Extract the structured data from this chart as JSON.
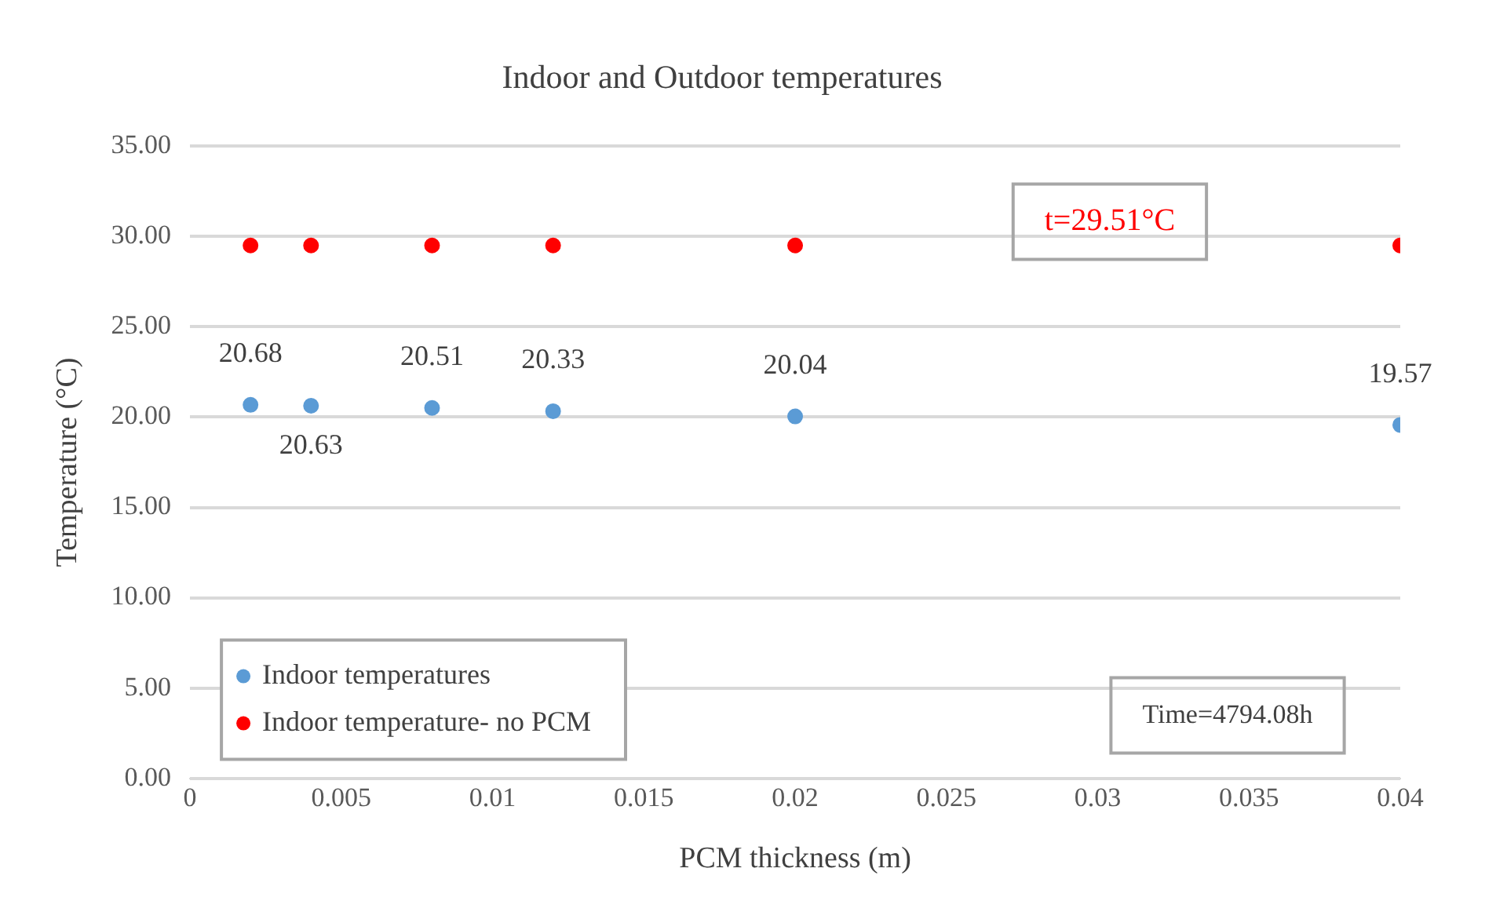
{
  "chart_data": {
    "type": "scatter",
    "title": "Indoor and Outdoor temperatures",
    "xlabel": "PCM thickness (m)",
    "ylabel": "Temperature (°C)",
    "x": [
      0.002,
      0.004,
      0.008,
      0.012,
      0.02,
      0.04
    ],
    "series": [
      {
        "name": "Indoor temperatures",
        "color": "#5b9bd5",
        "values": [
          20.68,
          20.63,
          20.51,
          20.33,
          20.04,
          19.57
        ],
        "value_labels": [
          "20.68",
          "20.63",
          "20.51",
          "20.33",
          "20.04",
          "19.57"
        ]
      },
      {
        "name": "Indoor temperature- no PCM",
        "color": "#ff0000",
        "values": [
          29.51,
          29.51,
          29.51,
          29.51,
          29.51,
          29.51
        ]
      }
    ],
    "xlim": [
      0,
      0.04
    ],
    "xticks": [
      0,
      0.005,
      0.01,
      0.015,
      0.02,
      0.025,
      0.03,
      0.035,
      0.04
    ],
    "ylim": [
      0,
      35
    ],
    "yticks": [
      {
        "value": 0,
        "label": "0.00"
      },
      {
        "value": 5,
        "label": "5.00"
      },
      {
        "value": 10,
        "label": "10.00"
      },
      {
        "value": 15,
        "label": "15.00"
      },
      {
        "value": 20,
        "label": "20.00"
      },
      {
        "value": 25,
        "label": "25.00"
      },
      {
        "value": 30,
        "label": "30.00"
      },
      {
        "value": 35,
        "label": "35.00"
      }
    ],
    "grid": "y",
    "legend": "bottom left",
    "marker": "circle",
    "annotations": [
      "t=29.51°C",
      "Time=4794.08h"
    ]
  }
}
